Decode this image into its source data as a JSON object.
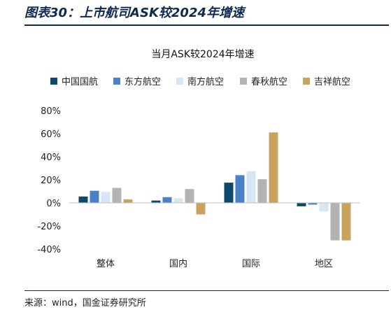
{
  "figure_title": "图表30：上市航司ASK较2024年增速",
  "source": "来源：wind，国金证券研究所",
  "chart_data": {
    "type": "bar",
    "title": "当月ASK较2024年增速",
    "categories": [
      "整体",
      "国内",
      "国际",
      "地区"
    ],
    "series": [
      {
        "name": "中国国航",
        "color": "#0b4a6b",
        "values": [
          5.5,
          2,
          17.5,
          -3
        ]
      },
      {
        "name": "东方航空",
        "color": "#4a80c8",
        "values": [
          10.5,
          5,
          24,
          -1.5
        ]
      },
      {
        "name": "南方航空",
        "color": "#d6e6f5",
        "values": [
          9.5,
          4,
          27.5,
          -7.5
        ]
      },
      {
        "name": "春秋航空",
        "color": "#b3b3b3",
        "values": [
          13,
          12,
          20.5,
          -32.5
        ]
      },
      {
        "name": "吉祥航空",
        "color": "#c9a25c",
        "values": [
          3,
          -10,
          61,
          -32.5
        ]
      }
    ],
    "ylim": [
      -40,
      80
    ],
    "yticks": [
      "80%",
      "60%",
      "40%",
      "20%",
      "0%",
      "-20%",
      "-40%"
    ],
    "ytick_values": [
      80,
      60,
      40,
      20,
      0,
      -20,
      -40
    ],
    "legend_position": "top",
    "grid": false
  }
}
